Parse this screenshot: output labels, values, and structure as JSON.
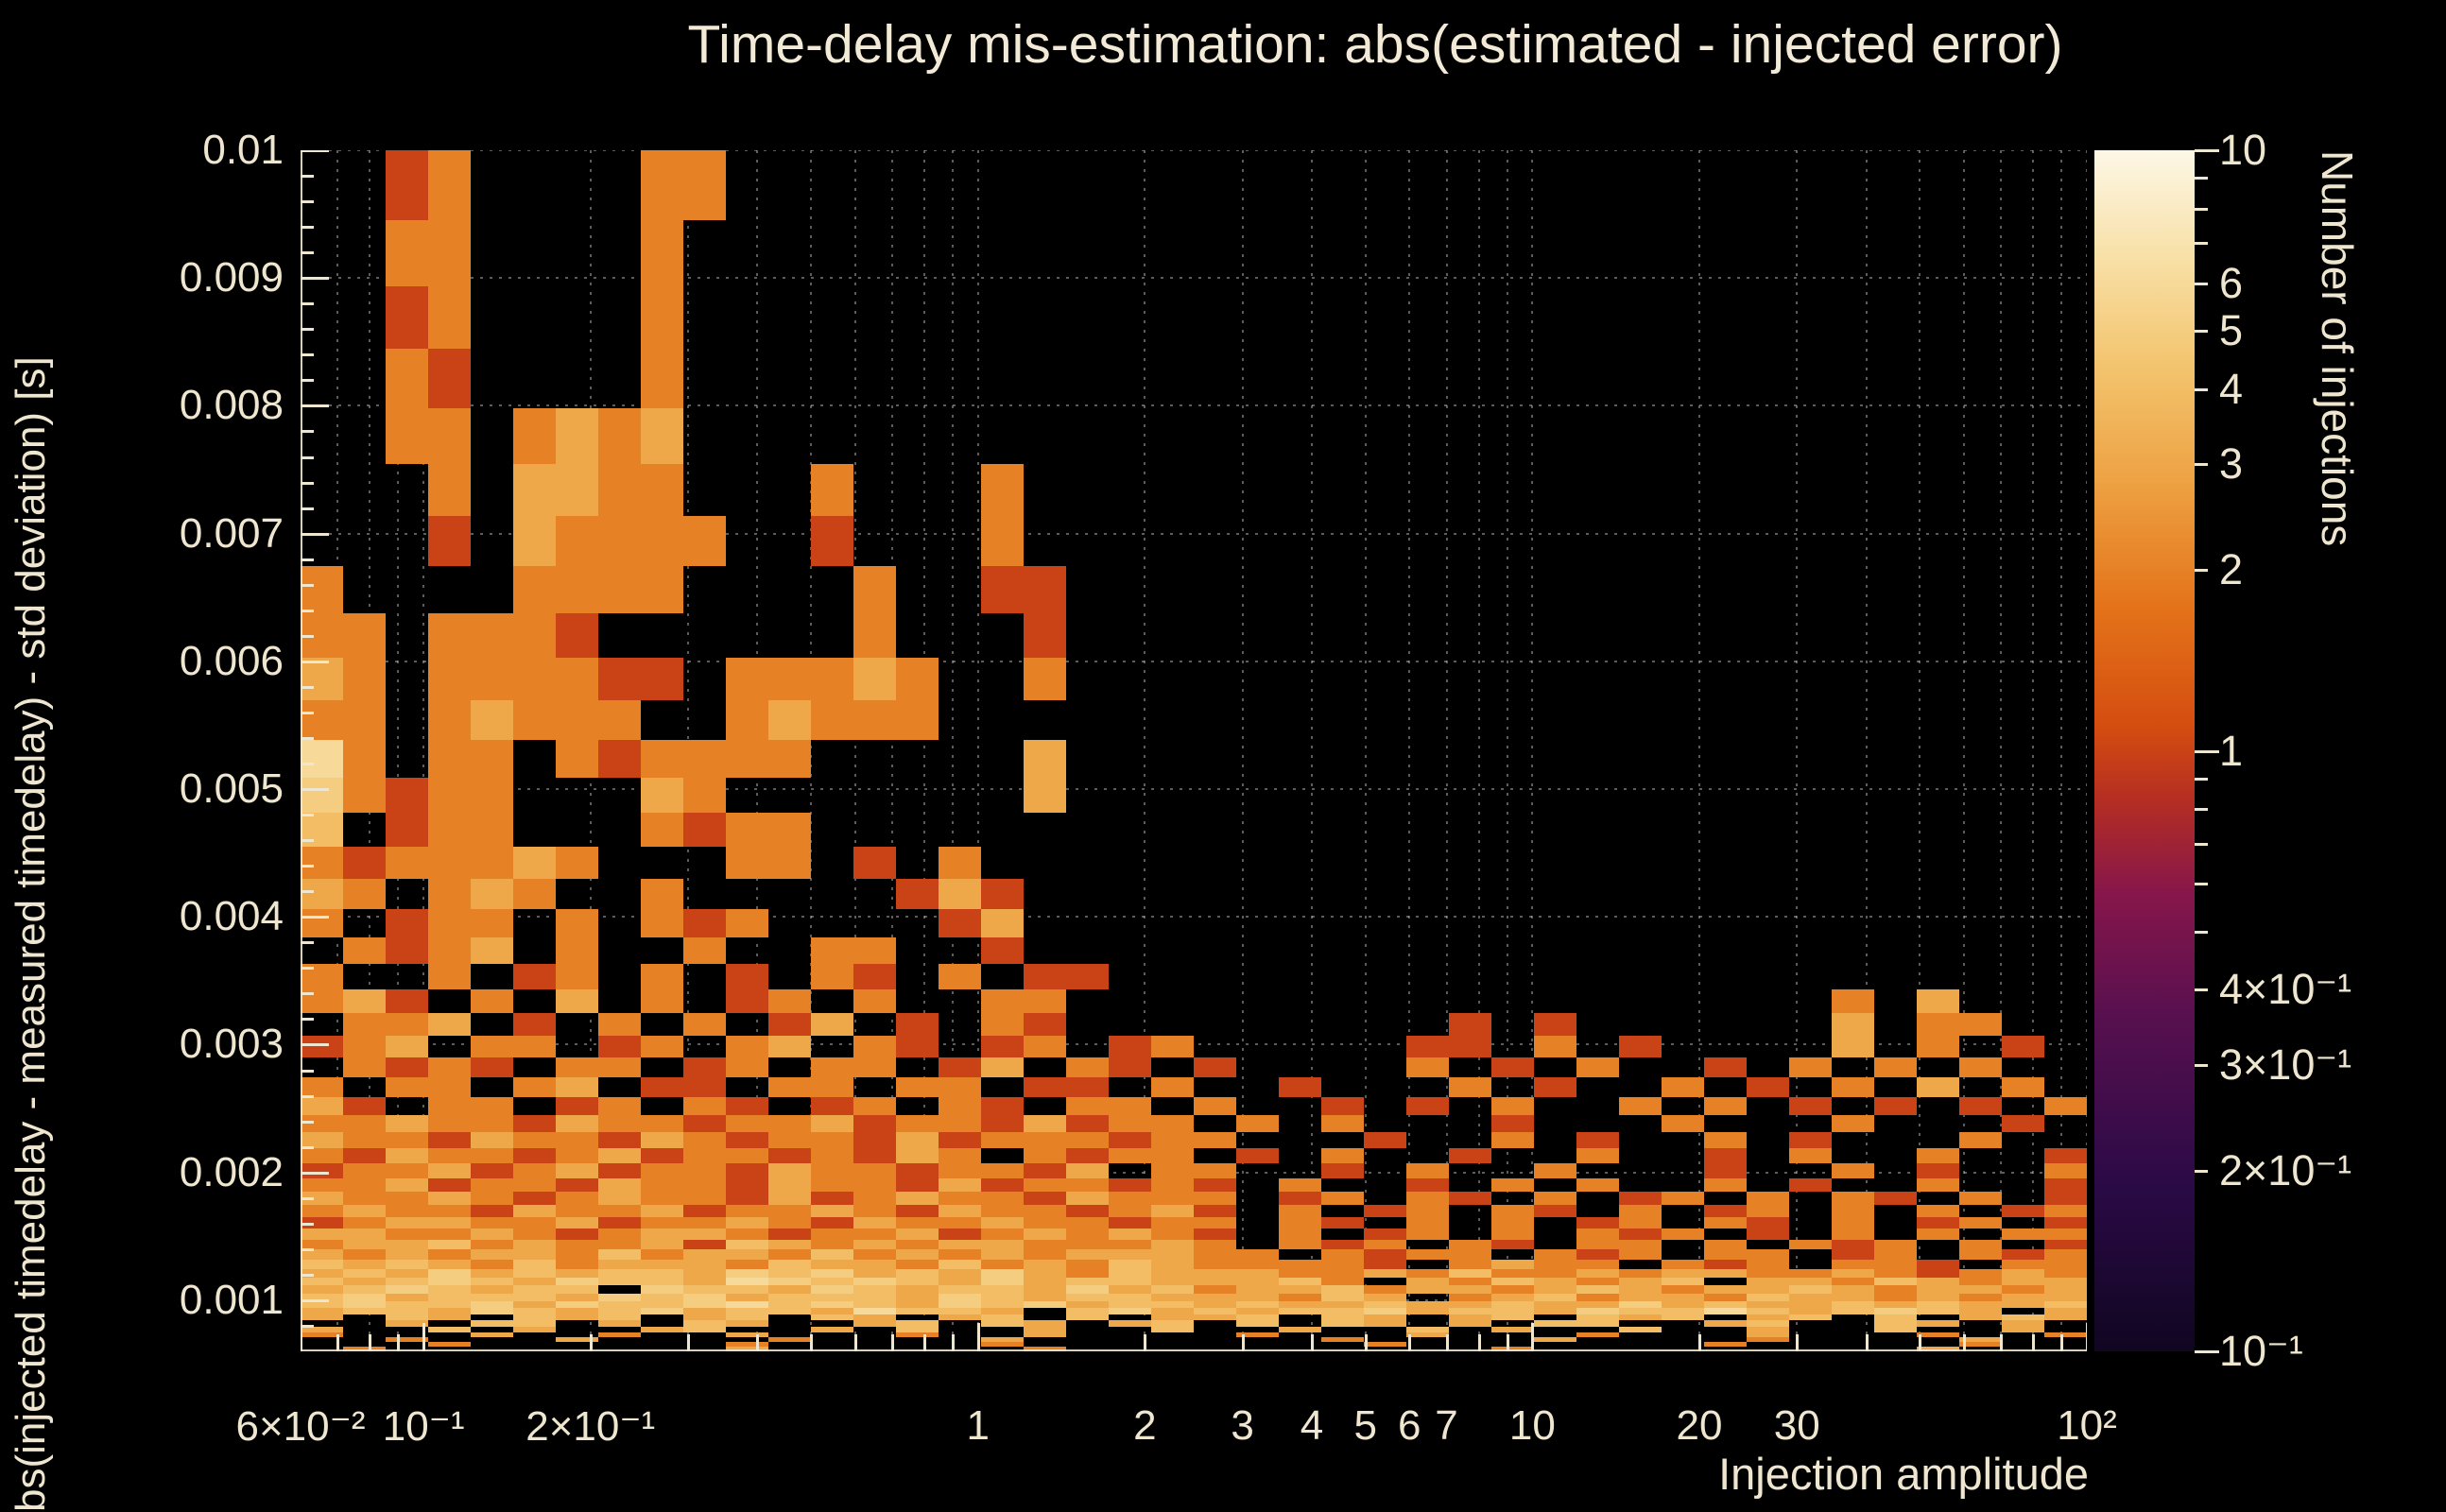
{
  "title": "Time-delay mis-estimation: abs(estimated - injected error)",
  "colors": {
    "background": "#000000",
    "text": "#efe6cf",
    "grid": "#cdcdcd"
  },
  "x_axis": {
    "title": "Injection amplitude",
    "scale": "log",
    "min": 0.06,
    "max": 100,
    "tick_labels": [
      {
        "v": 0.06,
        "t": "6×10⁻²"
      },
      {
        "v": 0.1,
        "t": "10⁻¹"
      },
      {
        "v": 0.2,
        "t": "2×10⁻¹"
      },
      {
        "v": 1,
        "t": "1"
      },
      {
        "v": 2,
        "t": "2"
      },
      {
        "v": 3,
        "t": "3"
      },
      {
        "v": 4,
        "t": "4"
      },
      {
        "v": 5,
        "t": "5"
      },
      {
        "v": 6,
        "t": "6"
      },
      {
        "v": 7,
        "t": "7"
      },
      {
        "v": 10,
        "t": "10"
      },
      {
        "v": 20,
        "t": "20"
      },
      {
        "v": 30,
        "t": "30"
      },
      {
        "v": 100,
        "t": "10²"
      }
    ],
    "major_ticks": [
      0.1,
      1,
      10,
      100
    ],
    "minor_ticks": [
      0.06,
      0.07,
      0.08,
      0.09,
      0.2,
      0.3,
      0.4,
      0.5,
      0.6,
      0.7,
      0.8,
      0.9,
      2,
      3,
      4,
      5,
      6,
      7,
      8,
      9,
      20,
      30,
      40,
      50,
      60,
      70,
      80,
      90
    ]
  },
  "y_axis": {
    "title": "bs(injected timedelay - measured timedelay) - std deviation) [s]",
    "scale": "linear",
    "min": 0.0006,
    "max": 0.01,
    "tick_labels": [
      {
        "v": 0.001,
        "t": "0.001"
      },
      {
        "v": 0.002,
        "t": "0.002"
      },
      {
        "v": 0.003,
        "t": "0.003"
      },
      {
        "v": 0.004,
        "t": "0.004"
      },
      {
        "v": 0.005,
        "t": "0.005"
      },
      {
        "v": 0.006,
        "t": "0.006"
      },
      {
        "v": 0.007,
        "t": "0.007"
      },
      {
        "v": 0.008,
        "t": "0.008"
      },
      {
        "v": 0.009,
        "t": "0.009"
      },
      {
        "v": 0.01,
        "t": "0.01"
      }
    ],
    "minor_step": 0.0002
  },
  "colorbar": {
    "title": "Number of injections",
    "scale": "log",
    "min": 0.1,
    "max": 10,
    "tick_labels": [
      {
        "v": 10,
        "t": "10"
      },
      {
        "v": 6,
        "t": "6"
      },
      {
        "v": 5,
        "t": "5"
      },
      {
        "v": 4,
        "t": "4"
      },
      {
        "v": 3,
        "t": "3"
      },
      {
        "v": 2,
        "t": "2"
      },
      {
        "v": 1,
        "t": "1"
      },
      {
        "v": 0.4,
        "t": "4×10⁻¹"
      },
      {
        "v": 0.3,
        "t": "3×10⁻¹"
      },
      {
        "v": 0.2,
        "t": "2×10⁻¹"
      },
      {
        "v": 0.1,
        "t": "10⁻¹"
      }
    ],
    "major_ticks": [
      0.1,
      1,
      10
    ],
    "minor_ticks": [
      0.2,
      0.3,
      0.4,
      0.5,
      0.6,
      0.7,
      0.8,
      0.9,
      2,
      3,
      4,
      5,
      6,
      7,
      8,
      9
    ]
  },
  "chart_data": {
    "type": "heatmap",
    "title": "Time-delay mis-estimation: abs(estimated - injected error)",
    "xlabel": "Injection amplitude",
    "ylabel": "bs(injected timedelay - measured timedelay) - std deviation) [s]",
    "zlabel": "Number of injections",
    "x": {
      "scale": "log",
      "min": 0.06,
      "max": 100,
      "bins": 42
    },
    "y": {
      "bin_scale": "log",
      "axis_display": "linear",
      "min": 0.0006,
      "max": 0.01,
      "bins": 50
    },
    "z": {
      "scale": "log",
      "min": 0.1,
      "max": 10
    },
    "grid": {
      "x": [
        0.07,
        0.08,
        0.09,
        0.1,
        0.2,
        0.3,
        0.4,
        0.5,
        0.6,
        0.7,
        0.8,
        0.9,
        1,
        2,
        3,
        4,
        5,
        6,
        7,
        8,
        9,
        10,
        20,
        30,
        40,
        50,
        60,
        70,
        80,
        90,
        100
      ],
      "y": [
        0.001,
        0.002,
        0.003,
        0.004,
        0.005,
        0.006,
        0.007,
        0.008,
        0.009,
        0.01
      ]
    },
    "colormap_stops": [
      [
        0.0,
        "#100621"
      ],
      [
        0.14,
        "#2b0a46"
      ],
      [
        0.28,
        "#58104f"
      ],
      [
        0.38,
        "#86164b"
      ],
      [
        0.46,
        "#b52e22"
      ],
      [
        0.52,
        "#d44d10"
      ],
      [
        0.62,
        "#e4731a"
      ],
      [
        0.72,
        "#eda041"
      ],
      [
        0.82,
        "#f3c46e"
      ],
      [
        0.91,
        "#f8e0a6"
      ],
      [
        1.0,
        "#fdf7e6"
      ]
    ],
    "heatmap": {
      "cols": 42,
      "char_values": {
        "1": 1,
        "2": 2,
        "3": 3,
        "4": 4,
        "5": 5,
        "6": 6,
        "8": 8,
        "X": 10
      },
      "rows_order": "top_to_bottom",
      "rows": [
        "..12....22................................",
        "..22....2.................................",
        "..12....2.................................",
        "..21....2.................................",
        "..22.2323.................................",
        "...2.3322...2...2.........................",
        "...1.32222..1...2.........................",
        "2....2222....2..11........................",
        "22.2221......2...1........................",
        "32.222211.22232..2........................",
        "22.23222..23222...........................",
        "62.22.212222.....3........................",
        "52122...32.......3........................",
        "4.122...2122..............................",
        "2122232...22.1.2..........................",
        "32.232..2.....131.........................",
        "2.122.2.212....13.........................",
        ".2123.2..2..22..1.........................",
        "2..2.12.2.1.21.2.11.......................",
        "231.2.3.2.12.2..22..................2.3...",
        ".223.1.2.2.13.1.21.........1.1......3.22..",
        "123.22.12.23.21.12.12.....11.2.1....3.2.1.",
        ".2121.22.12.22.13.21.1....2.1.2..1.2.2.2..",
        "2.22.23.11.22.22.11.2..1...2.1..2.1.2.3.2.",
        "31.22.12.21.12.21.22.2..1.1.2..2.2.1.1.1.2",
        "223221322122312213122.2.2...1...2...2...1.",
        "3221322132122131222122...1..2.1..2.1...2..",
        "2132212312212132.2122.1.2..1..2..1.2..2..1",
        "1223123122132212213.22..1.2..2...1..2.1..2",
        "2231221322132213122121.2..1.2.2..2.1..2..1",
        "3223212322131232213222.12.21.2.12.2.21.2.1",
        "2322132231223213221231.2.12.21.2.12.2.2.12",
        "1233223122321322322122.21.2.2.12.21.2.12.1",
        "3322321233212231232321.2.12.2.212.1.2.2.22",
        "2334232231432323322232.212.21.22.2.212.2.1",
        "32323324233242323233322.2122.212.22.12.212",
        "43432423332433242324322221.2322.212.221.22",
        "343534344354534353243332232422323322321232",
        "4345435443654543534433342.3243234.33243233",
        "3454344.5443543443534233423323432334323323",
        "45344435453444354344333243.234233243323233",
        "454453544564543545344343343343353433434334",
        "34435434534436443.4534344534435446434543.3",
        "3.43.434.34.43.34.4.334.43.34.434.34.4.343",
        "..3.44.3.43..34.43.34.4.43.3.44..34..43.3.",
        "3..4.3..34..3.4..3..4..3..4.3..4..3..4..3.",
        "2...3..2..3...2..3....2...3...2...3...2..2",
        "..2...3....2....3.......2....3....2....3..",
        "...2......2.....2........2.......2.....2..",
        ".2........3......2..........2.........3..."
      ]
    }
  }
}
